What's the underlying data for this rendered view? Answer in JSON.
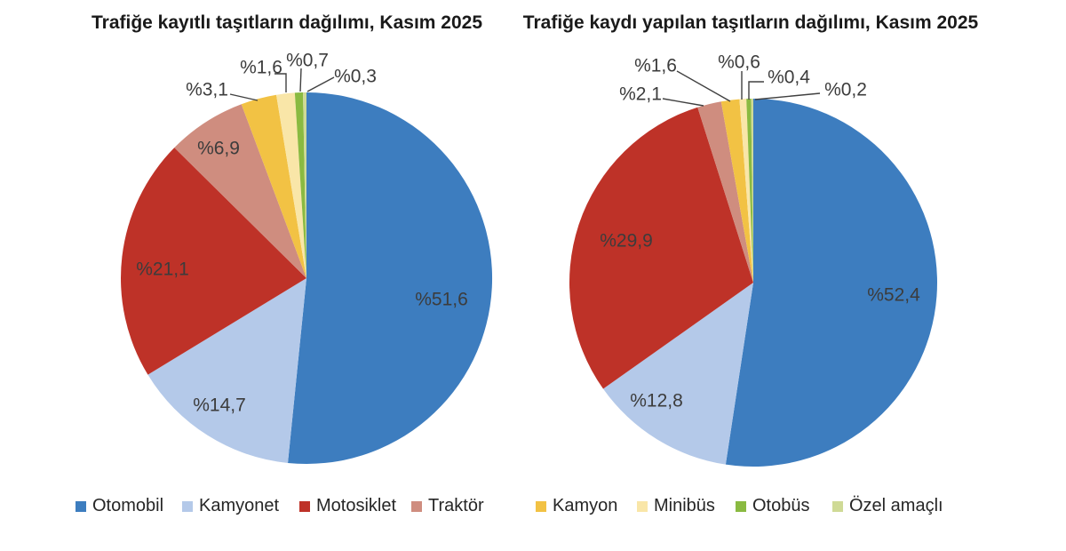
{
  "page": {
    "background": "#ffffff"
  },
  "colors": {
    "series": [
      "#3d7dbf",
      "#b4c9e9",
      "#be3228",
      "#cf8d7f",
      "#f2c244",
      "#f9e6a8",
      "#8aba41",
      "#cfda96"
    ],
    "title_text": "#1a1a1a",
    "label_text": "#3c3c3c",
    "legend_text": "#262626",
    "leader_line": "#404040"
  },
  "legend": {
    "position": "bottom",
    "items": [
      {
        "label": "Otomobil",
        "color": "#3d7dbf"
      },
      {
        "label": "Kamyonet",
        "color": "#b4c9e9"
      },
      {
        "label": "Motosiklet",
        "color": "#be3228"
      },
      {
        "label": "Traktör",
        "color": "#cf8d7f"
      },
      {
        "label": "Kamyon",
        "color": "#f2c244"
      },
      {
        "label": "Minibüs",
        "color": "#f9e6a8"
      },
      {
        "label": "Otobüs",
        "color": "#8aba41"
      },
      {
        "label": "Özel amaçlı",
        "color": "#cfda96"
      }
    ]
  },
  "chart_data": [
    {
      "type": "pie",
      "title": "Trafiğe kayıtlı taşıtların dağılımı, Kasım 2025",
      "categories": [
        "Otomobil",
        "Kamyonet",
        "Motosiklet",
        "Traktör",
        "Kamyon",
        "Minibüs",
        "Otobüs",
        "Özel amaçlı"
      ],
      "values": [
        51.6,
        14.7,
        21.1,
        6.9,
        3.1,
        1.6,
        0.7,
        0.3
      ],
      "labels": [
        "%51,6",
        "%14,7",
        "%21,1",
        "%6,9",
        "%3,1",
        "%1,6",
        "%0,7",
        "%0,3"
      ],
      "start_angle_deg": 0,
      "direction": "clockwise",
      "legend_position": "bottom"
    },
    {
      "type": "pie",
      "title": "Trafiğe kaydı yapılan taşıtların dağılımı, Kasım 2025",
      "categories": [
        "Otomobil",
        "Kamyonet",
        "Motosiklet",
        "Traktör",
        "Kamyon",
        "Minibüs",
        "Otobüs",
        "Özel amaçlı"
      ],
      "values": [
        52.4,
        12.8,
        29.9,
        2.1,
        1.6,
        0.6,
        0.4,
        0.2
      ],
      "labels": [
        "%52,4",
        "%12,8",
        "%29,9",
        "%2,1",
        "%1,6",
        "%0,6",
        "%0,4",
        "%0,2"
      ],
      "start_angle_deg": 0,
      "direction": "clockwise",
      "legend_position": "bottom"
    }
  ]
}
